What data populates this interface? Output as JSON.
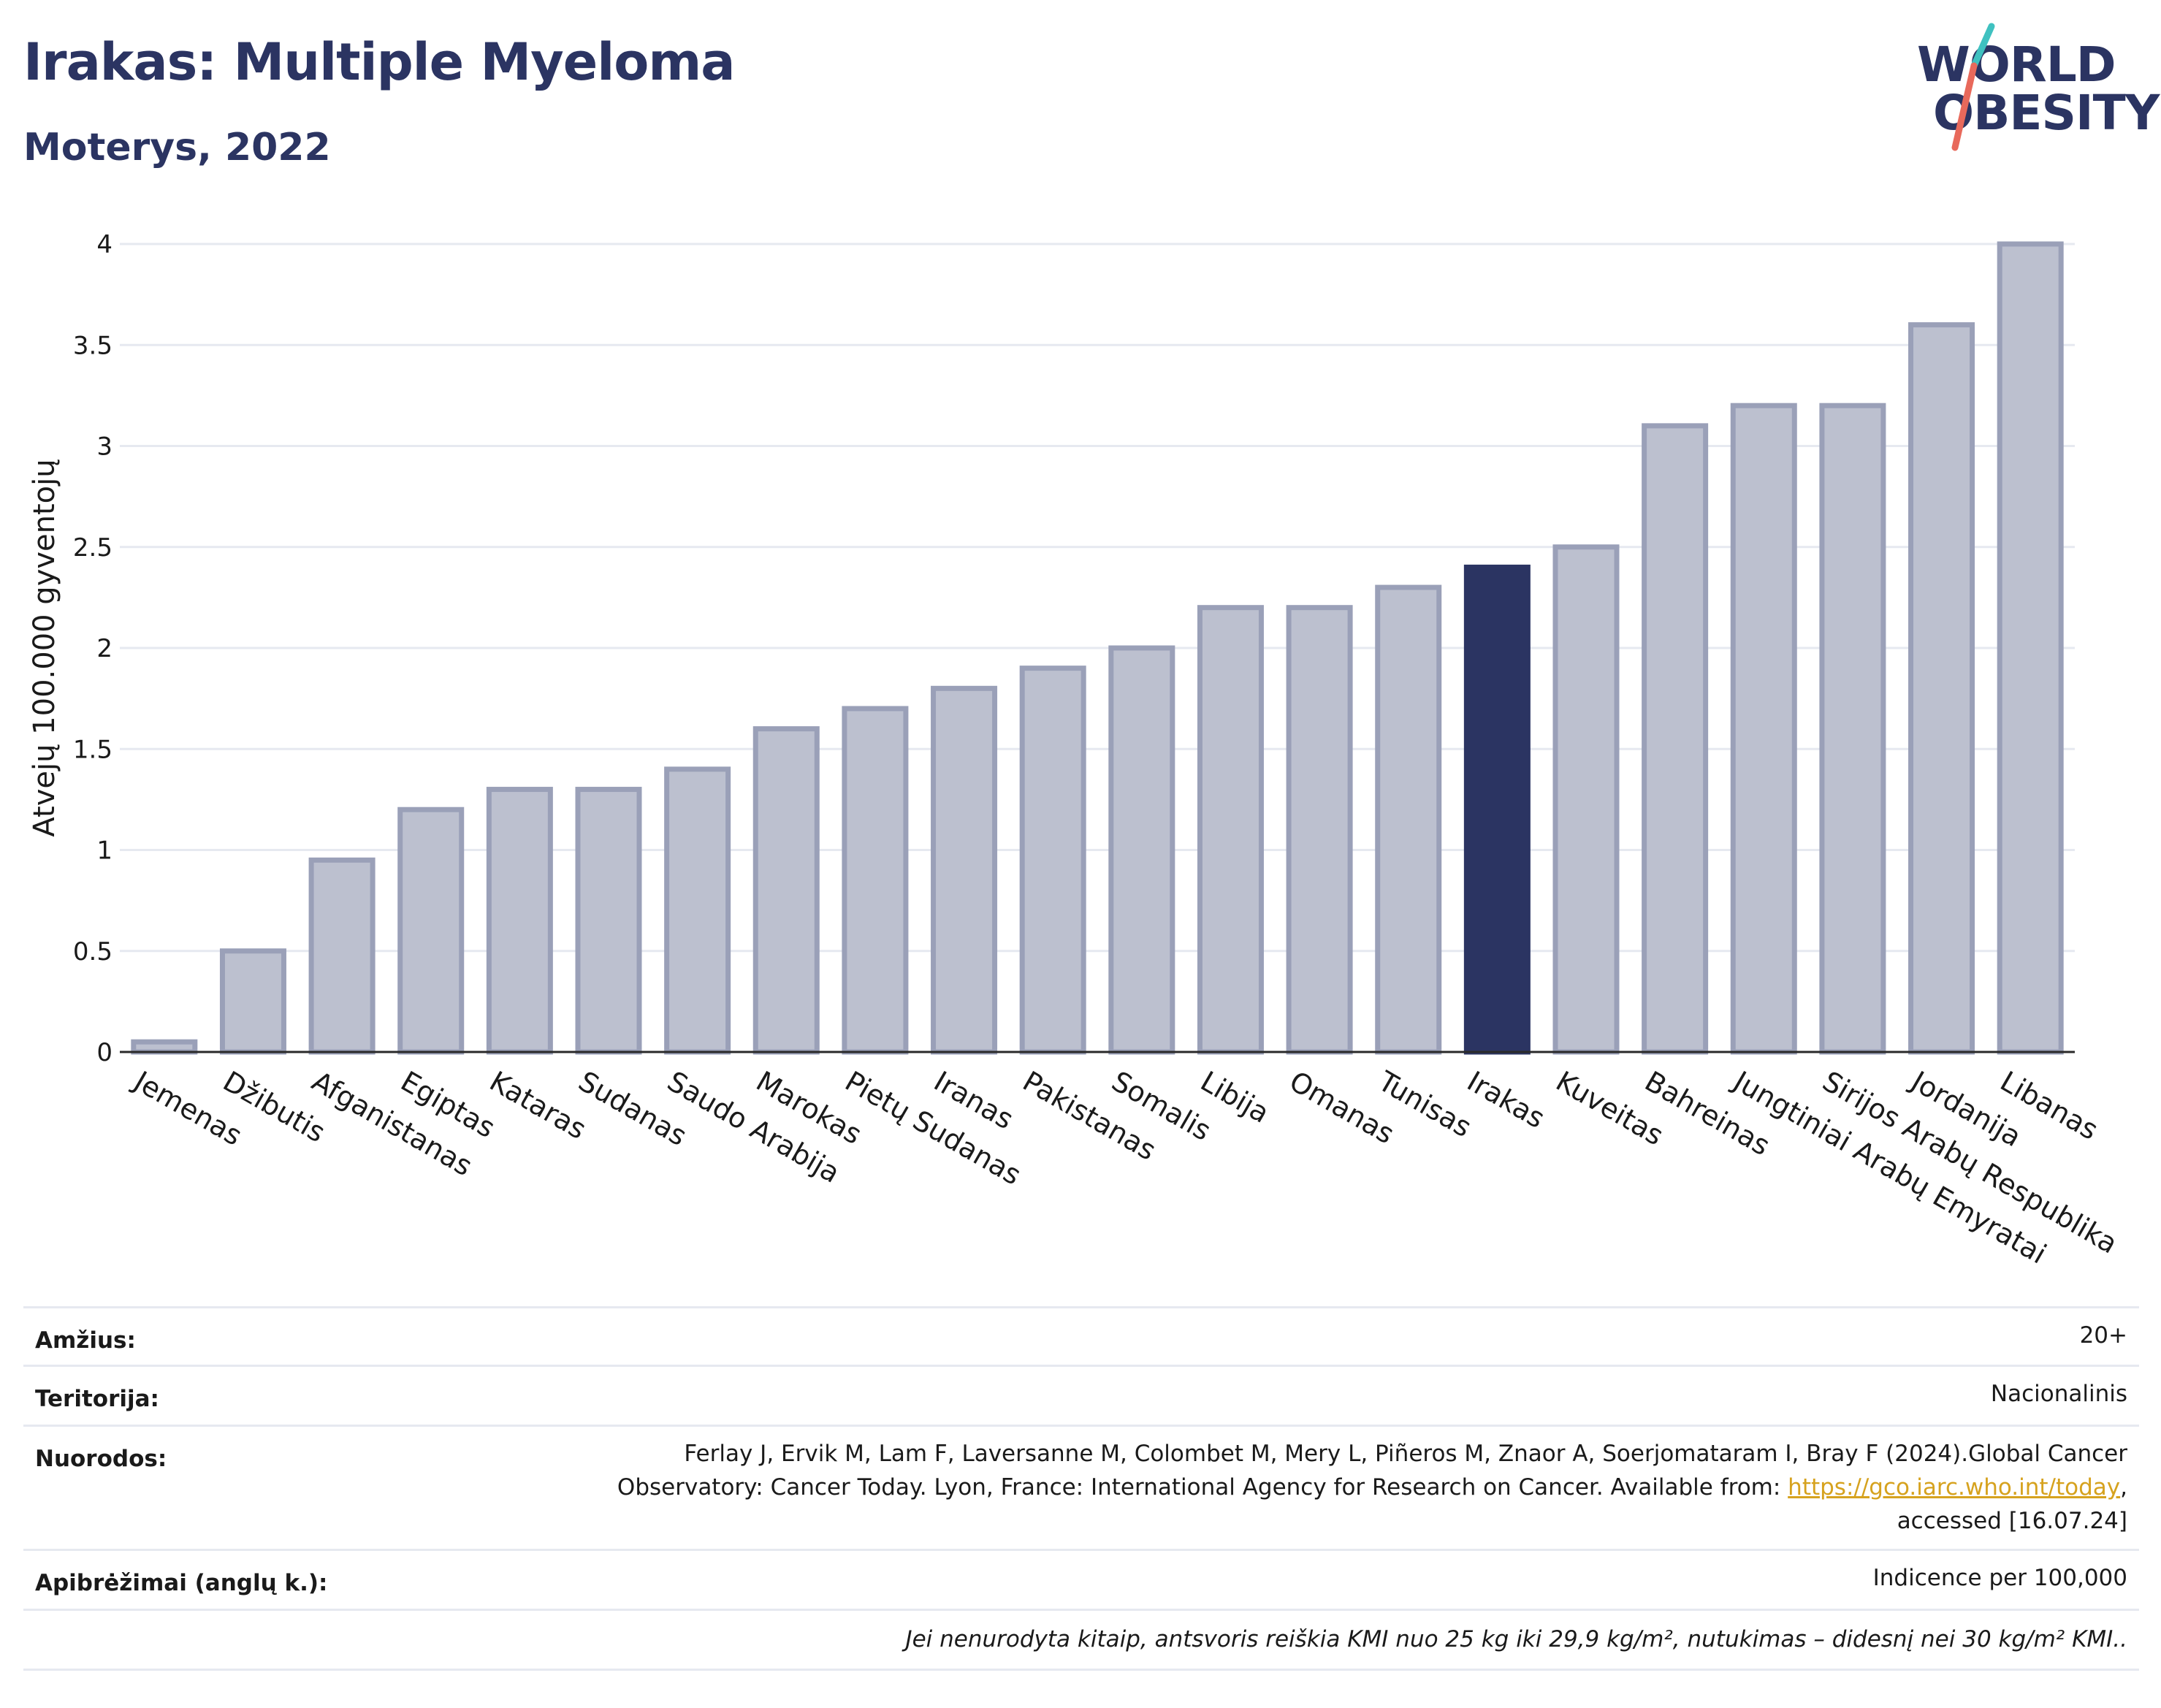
{
  "header": {
    "title": "Irakas: Multiple Myeloma",
    "subtitle": "Moterys, 2022"
  },
  "logo": {
    "line1": "WORLD",
    "line2": "OBESITY",
    "colors": {
      "text": "#2b3462",
      "slash_top": "#3fc1c0",
      "slash_bottom": "#e8695b"
    }
  },
  "chart_data": {
    "type": "bar",
    "title": "",
    "xlabel": "",
    "ylabel": "Atvejų 100.000 gyventojų",
    "ylim": [
      0,
      4
    ],
    "yticks": [
      "0",
      "0.5",
      "1",
      "1.5",
      "2",
      "2.5",
      "3",
      "3.5",
      "4"
    ],
    "grid": true,
    "highlight": "Irakas",
    "colors": {
      "bar": "#bcc0cf",
      "bar_border": "#9aa0b8",
      "highlight": "#2b3462"
    },
    "categories": [
      "Jemenas",
      "Džibutis",
      "Afganistanas",
      "Egiptas",
      "Kataras",
      "Sudanas",
      "Saudo Arabija",
      "Marokas",
      "Pietų Sudanas",
      "Iranas",
      "Pakistanas",
      "Somalis",
      "Libija",
      "Omanas",
      "Tunisas",
      "Irakas",
      "Kuveitas",
      "Bahreinas",
      "Jungtiniai Arabų Emyratai",
      "Sirijos Arabų Respublika",
      "Jordanija",
      "Libanas"
    ],
    "values": [
      0.05,
      0.5,
      0.95,
      1.2,
      1.3,
      1.3,
      1.4,
      1.6,
      1.7,
      1.8,
      1.9,
      2.0,
      2.2,
      2.2,
      2.3,
      2.4,
      2.5,
      3.1,
      3.2,
      3.2,
      3.6,
      4.0
    ]
  },
  "meta": {
    "age_label": "Amžius:",
    "age_value": "20+",
    "territory_label": "Teritorija:",
    "territory_value": "Nacionalinis",
    "refs_label": "Nuorodos:",
    "refs_line1": "Ferlay J, Ervik M, Lam F, Laversanne M, Colombet M, Mery L, Piñeros M, Znaor A, Soerjomataram I, Bray F (2024).Global Cancer",
    "refs_line2_pre": "Observatory: Cancer Today. Lyon, France: International Agency for Research on Cancer. Available from: ",
    "refs_link": "https://gco.iarc.who.int/today",
    "refs_line2_post": ",",
    "refs_line3": "accessed [16.07.24]",
    "defs_label": "Apibrėžimai (anglų k.):",
    "defs_value": "Indicence per 100,000",
    "note": "Jei nenurodyta kitaip, antsvoris reiškia KMI nuo 25 kg iki 29,9 kg/m², nutukimas – didesnį nei 30 kg/m² KMI.."
  }
}
